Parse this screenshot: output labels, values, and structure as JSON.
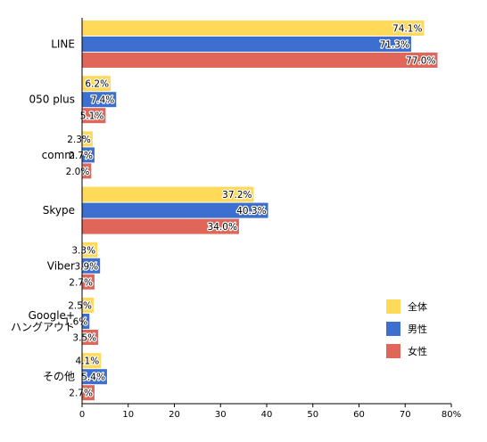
{
  "chart_data": {
    "type": "bar",
    "orientation": "horizontal",
    "categories": [
      [
        "LINE"
      ],
      [
        "050 plus"
      ],
      [
        "comm"
      ],
      [
        "Skype"
      ],
      [
        "Viber"
      ],
      [
        "Google+",
        "ハングアウト"
      ],
      [
        "その他"
      ]
    ],
    "series": [
      {
        "name": "全体",
        "color": "#FFD958",
        "values": [
          74.1,
          6.2,
          2.3,
          37.2,
          3.3,
          2.5,
          4.1
        ]
      },
      {
        "name": "男性",
        "color": "#3D6FD1",
        "values": [
          71.3,
          7.4,
          2.7,
          40.3,
          3.9,
          1.6,
          5.4
        ]
      },
      {
        "name": "女性",
        "color": "#E0665A",
        "values": [
          77.0,
          5.1,
          2.0,
          34.0,
          2.7,
          3.5,
          2.7
        ]
      }
    ],
    "value_suffix": "%",
    "xlim": [
      0,
      80
    ],
    "xticks": [
      "0",
      "10",
      "20",
      "30",
      "40",
      "50",
      "60",
      "70",
      "80%"
    ],
    "grid": false,
    "legend_position": "bottom-right"
  }
}
